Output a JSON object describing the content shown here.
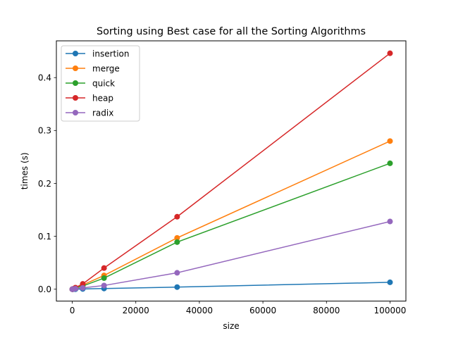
{
  "chart_data": {
    "type": "line",
    "title": "Sorting using Best case for all the Sorting Algorithms",
    "xlabel": "size",
    "ylabel": "times (s)",
    "xlim": [
      -5000,
      105000
    ],
    "ylim": [
      -0.0225,
      0.4695
    ],
    "xticks": [
      0,
      20000,
      40000,
      60000,
      80000,
      100000
    ],
    "xtick_labels": [
      "0",
      "20000",
      "40000",
      "60000",
      "80000",
      "100000"
    ],
    "yticks": [
      0.0,
      0.1,
      0.2,
      0.3,
      0.4
    ],
    "ytick_labels": [
      "0.0",
      "0.1",
      "0.2",
      "0.3",
      "0.4"
    ],
    "grid": false,
    "legend_position": "top-left",
    "x": [
      10,
      30,
      100,
      300,
      1000,
      3300,
      10000,
      33000,
      100000
    ],
    "series": [
      {
        "name": "insertion",
        "color": "#1f77b4",
        "values": [
          0.0,
          0.0,
          0.0,
          0.0,
          0.0,
          0.0005,
          0.0013,
          0.004,
          0.013
        ]
      },
      {
        "name": "merge",
        "color": "#ff7f0e",
        "values": [
          0.0,
          0.0,
          0.0,
          0.0005,
          0.002,
          0.008,
          0.026,
          0.097,
          0.28
        ]
      },
      {
        "name": "quick",
        "color": "#2ca02c",
        "values": [
          0.0,
          0.0,
          0.0,
          0.0005,
          0.002,
          0.006,
          0.021,
          0.089,
          0.238
        ]
      },
      {
        "name": "heap",
        "color": "#d62728",
        "values": [
          0.0,
          0.0,
          0.0,
          0.0008,
          0.003,
          0.01,
          0.04,
          0.137,
          0.446
        ]
      },
      {
        "name": "radix",
        "color": "#9467bd",
        "values": [
          0.0,
          0.0,
          0.0,
          0.0003,
          0.001,
          0.0025,
          0.007,
          0.031,
          0.128
        ]
      }
    ]
  }
}
